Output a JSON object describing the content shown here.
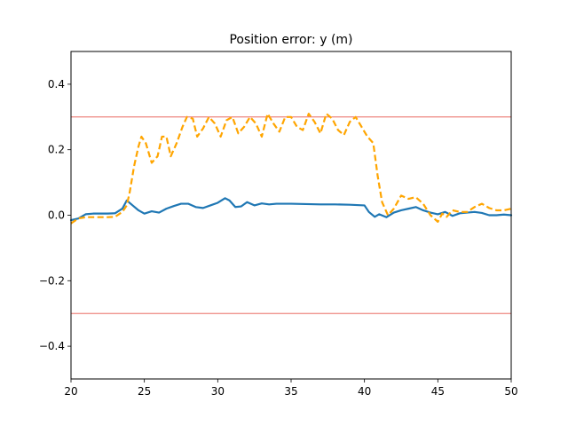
{
  "chart_data": {
    "type": "line",
    "title": "Position error: y (m)",
    "xlabel": "",
    "ylabel": "",
    "xlim": [
      20,
      50
    ],
    "ylim": [
      -0.5,
      0.5
    ],
    "xticks": [
      20,
      25,
      30,
      35,
      40,
      45,
      50
    ],
    "yticks": [
      -0.4,
      -0.2,
      0.0,
      0.2,
      0.4
    ],
    "xtick_labels": [
      "20",
      "25",
      "30",
      "35",
      "40",
      "45",
      "50"
    ],
    "ytick_labels": [
      "−0.4",
      "−0.2",
      "0.0",
      "0.2",
      "0.4"
    ],
    "grid": false,
    "legend": "none",
    "hlines": [
      {
        "y": 0.3,
        "color": "#e8534b"
      },
      {
        "y": -0.3,
        "color": "#e8534b"
      }
    ],
    "series": [
      {
        "color": "#1f77b4",
        "style": "solid",
        "x": [
          20.0,
          20.5,
          21.0,
          21.5,
          22.0,
          22.5,
          23.0,
          23.5,
          23.8,
          24.2,
          24.6,
          25.0,
          25.5,
          26.0,
          26.5,
          27.0,
          27.5,
          28.0,
          28.5,
          29.0,
          29.5,
          30.0,
          30.5,
          30.8,
          31.2,
          31.6,
          32.0,
          32.5,
          33.0,
          33.5,
          34.0,
          35.0,
          36.0,
          37.0,
          38.0,
          39.0,
          40.0,
          40.3,
          40.7,
          41.0,
          41.5,
          42.0,
          42.5,
          43.0,
          43.5,
          44.0,
          44.5,
          45.0,
          45.5,
          46.0,
          46.5,
          47.0,
          47.5,
          48.0,
          48.5,
          49.0,
          49.5,
          50.0
        ],
        "y": [
          -0.015,
          -0.01,
          0.003,
          0.005,
          0.005,
          0.005,
          0.006,
          0.02,
          0.045,
          0.03,
          0.015,
          0.005,
          0.012,
          0.008,
          0.02,
          0.028,
          0.035,
          0.035,
          0.025,
          0.022,
          0.03,
          0.038,
          0.052,
          0.045,
          0.025,
          0.027,
          0.04,
          0.03,
          0.036,
          0.033,
          0.035,
          0.035,
          0.034,
          0.033,
          0.033,
          0.032,
          0.03,
          0.01,
          -0.005,
          0.003,
          -0.006,
          0.008,
          0.015,
          0.02,
          0.025,
          0.015,
          0.008,
          0.003,
          0.01,
          -0.002,
          0.006,
          0.008,
          0.01,
          0.007,
          0.0,
          0.0,
          0.002,
          0.0
        ]
      },
      {
        "color": "#ffa500",
        "style": "dashed",
        "x": [
          20.0,
          20.5,
          21.0,
          21.5,
          22.0,
          22.5,
          23.0,
          23.5,
          23.8,
          24.0,
          24.3,
          24.6,
          24.8,
          25.1,
          25.5,
          25.9,
          26.2,
          26.5,
          26.8,
          27.2,
          27.6,
          27.9,
          28.3,
          28.6,
          29.0,
          29.4,
          29.8,
          30.2,
          30.6,
          31.0,
          31.4,
          31.8,
          32.2,
          32.6,
          33.0,
          33.4,
          33.8,
          34.2,
          34.6,
          35.0,
          35.4,
          35.8,
          36.2,
          36.6,
          37.0,
          37.4,
          37.8,
          38.2,
          38.6,
          39.0,
          39.4,
          39.8,
          40.2,
          40.6,
          40.9,
          41.2,
          41.6,
          42.0,
          42.5,
          43.0,
          43.5,
          44.0,
          44.5,
          45.0,
          45.3,
          45.6,
          46.0,
          46.5,
          47.0,
          47.5,
          48.0,
          48.5,
          49.0,
          49.5,
          50.0
        ],
        "y": [
          -0.025,
          -0.01,
          -0.006,
          -0.006,
          -0.006,
          -0.006,
          -0.005,
          0.01,
          0.03,
          0.07,
          0.15,
          0.21,
          0.24,
          0.22,
          0.16,
          0.18,
          0.24,
          0.24,
          0.18,
          0.22,
          0.27,
          0.3,
          0.295,
          0.24,
          0.265,
          0.3,
          0.28,
          0.24,
          0.29,
          0.3,
          0.25,
          0.27,
          0.3,
          0.28,
          0.24,
          0.31,
          0.28,
          0.255,
          0.3,
          0.3,
          0.27,
          0.26,
          0.31,
          0.285,
          0.25,
          0.31,
          0.295,
          0.26,
          0.245,
          0.285,
          0.3,
          0.27,
          0.24,
          0.22,
          0.12,
          0.04,
          0.0,
          0.02,
          0.06,
          0.05,
          0.055,
          0.035,
          0.0,
          -0.02,
          0.005,
          -0.005,
          0.015,
          0.01,
          0.01,
          0.025,
          0.035,
          0.022,
          0.015,
          0.015,
          0.02
        ]
      }
    ]
  }
}
